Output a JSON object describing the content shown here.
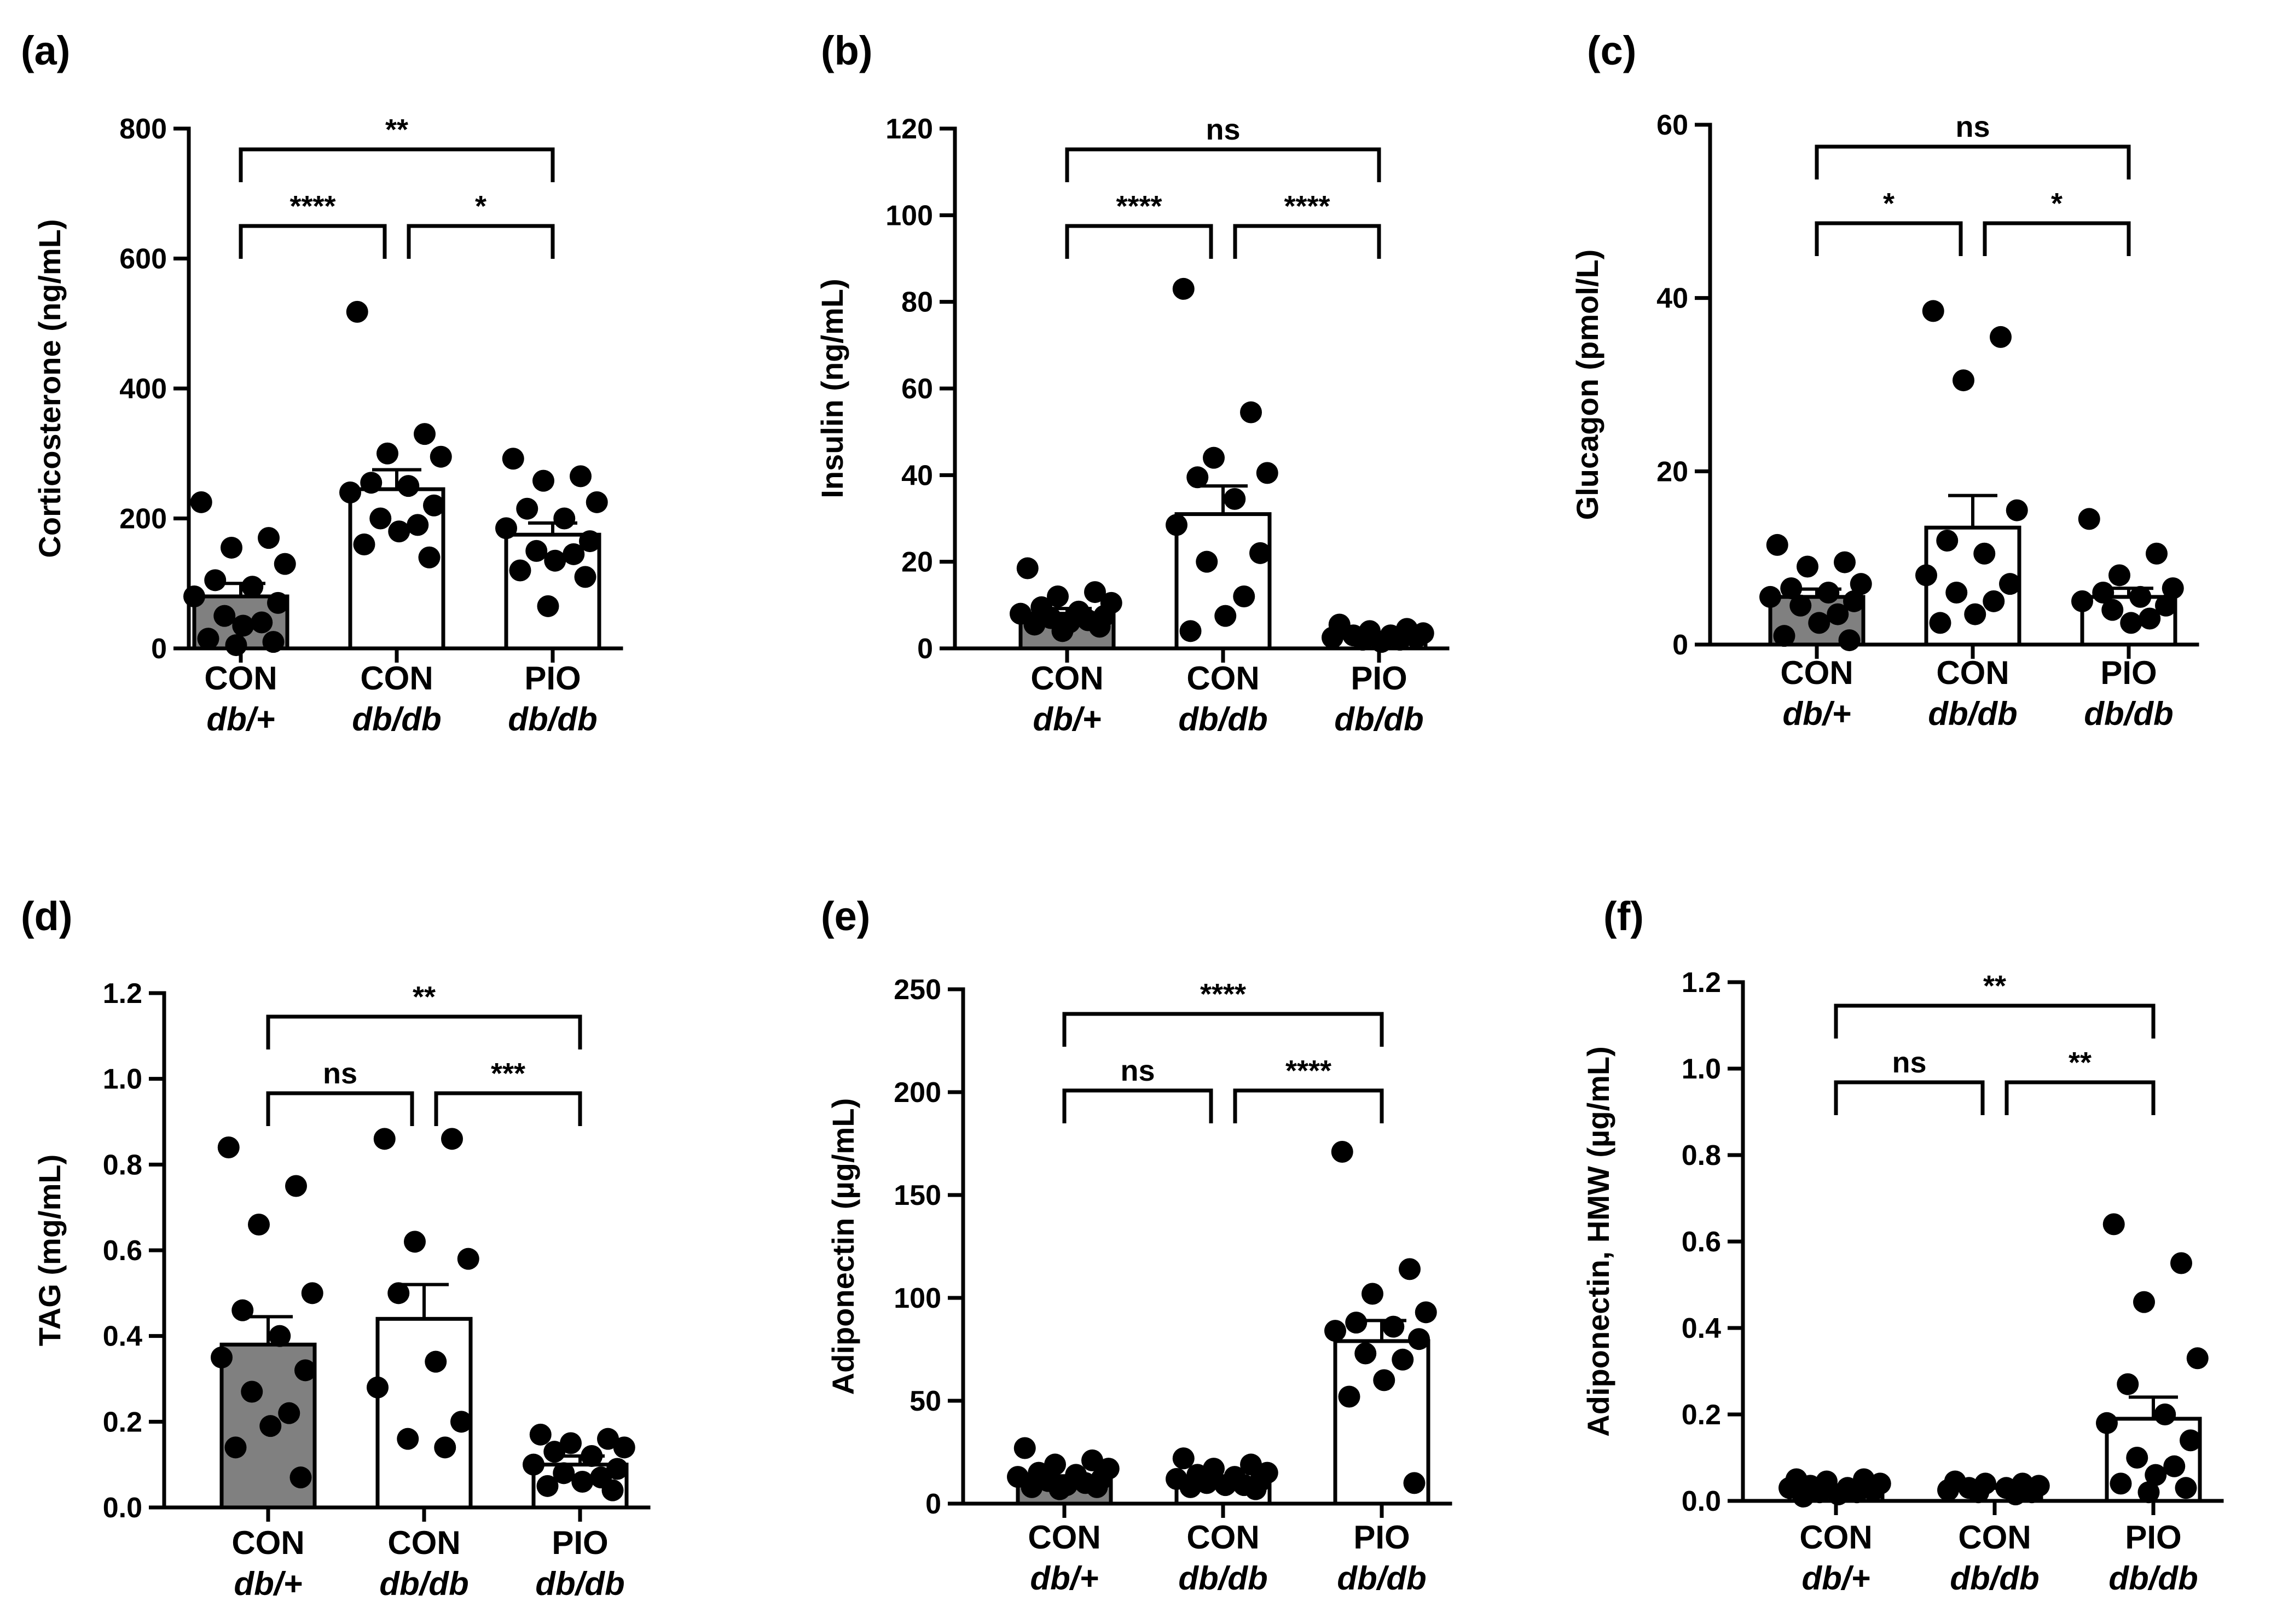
{
  "chart_data": [
    {
      "type": "bar",
      "panel_label": "(a)",
      "ylabel": "Corticosterone (ng/mL)",
      "ylim": [
        0,
        800
      ],
      "yticks": [
        0,
        200,
        400,
        600,
        800
      ],
      "categories": [
        {
          "line1": "CON",
          "line2": "db/+",
          "mean": 80,
          "sem": 20,
          "fill": "#808080",
          "points": [
            225,
            170,
            155,
            130,
            105,
            95,
            80,
            70,
            50,
            40,
            35,
            15,
            10,
            5
          ]
        },
        {
          "line1": "CON",
          "line2": "db/db",
          "mean": 245,
          "sem": 30,
          "fill": "#ffffff",
          "points": [
            518,
            330,
            300,
            295,
            255,
            250,
            240,
            220,
            200,
            190,
            180,
            160,
            140
          ]
        },
        {
          "line1": "PIO",
          "line2": "db/db",
          "mean": 175,
          "sem": 18,
          "fill": "#ffffff",
          "points": [
            292,
            265,
            258,
            225,
            215,
            200,
            185,
            165,
            150,
            145,
            135,
            120,
            110,
            65
          ]
        }
      ],
      "comparisons": [
        {
          "from": 0,
          "to": 2,
          "label": "**"
        },
        {
          "from": 0,
          "to": 1,
          "label": "****"
        },
        {
          "from": 1,
          "to": 2,
          "label": "*"
        }
      ]
    },
    {
      "type": "bar",
      "panel_label": "(b)",
      "ylabel": "Insulin (ng/mL)",
      "ylim": [
        0,
        120
      ],
      "yticks": [
        0,
        20,
        40,
        60,
        80,
        100,
        120
      ],
      "categories": [
        {
          "line1": "CON",
          "line2": "db/+",
          "mean": 8,
          "sem": 1.2,
          "fill": "#808080",
          "points": [
            18.5,
            13,
            12,
            10.5,
            9.5,
            8.5,
            8,
            7.5,
            7,
            6.5,
            6,
            5.5,
            5,
            4
          ]
        },
        {
          "line1": "CON",
          "line2": "db/db",
          "mean": 31,
          "sem": 6.5,
          "fill": "#ffffff",
          "points": [
            83,
            54.5,
            44,
            40.5,
            39.5,
            34.5,
            28.5,
            22,
            20,
            12,
            7.5,
            4
          ]
        },
        {
          "line1": "PIO",
          "line2": "db/db",
          "mean": 3,
          "sem": 0.4,
          "fill": "#ffffff",
          "points": [
            5.5,
            4.5,
            4,
            3.5,
            3,
            3,
            2.5,
            2.5,
            2,
            2,
            1.5
          ]
        }
      ],
      "comparisons": [
        {
          "from": 0,
          "to": 2,
          "label": "ns"
        },
        {
          "from": 0,
          "to": 1,
          "label": "****"
        },
        {
          "from": 1,
          "to": 2,
          "label": "****"
        }
      ]
    },
    {
      "type": "bar",
      "panel_label": "(c)",
      "ylabel": "Glucagon (pmol/L)",
      "ylim": [
        0,
        60
      ],
      "yticks": [
        0,
        20,
        40,
        60
      ],
      "categories": [
        {
          "line1": "CON",
          "line2": "db/+",
          "mean": 5.5,
          "sem": 0.9,
          "fill": "#808080",
          "points": [
            11.5,
            9.5,
            9,
            7,
            6.5,
            6,
            5.5,
            5,
            4.5,
            3.5,
            2.5,
            1,
            0.5
          ]
        },
        {
          "line1": "CON",
          "line2": "db/db",
          "mean": 13.5,
          "sem": 3.7,
          "fill": "#ffffff",
          "points": [
            38.5,
            35.5,
            30.5,
            15.5,
            12,
            10.5,
            8,
            7,
            6,
            5,
            3.5,
            2.5
          ]
        },
        {
          "line1": "PIO",
          "line2": "db/db",
          "mean": 5.5,
          "sem": 1.0,
          "fill": "#ffffff",
          "points": [
            14.5,
            10.5,
            8,
            6.5,
            6,
            5.5,
            5,
            4.5,
            4,
            3,
            2.5
          ]
        }
      ],
      "comparisons": [
        {
          "from": 0,
          "to": 2,
          "label": "ns"
        },
        {
          "from": 0,
          "to": 1,
          "label": "*"
        },
        {
          "from": 1,
          "to": 2,
          "label": "*"
        }
      ]
    },
    {
      "type": "bar",
      "panel_label": "(d)",
      "ylabel": "TAG  (mg/mL)",
      "ylim": [
        0,
        1.2
      ],
      "yticks": [
        0.0,
        0.2,
        0.4,
        0.6,
        0.8,
        1.0,
        1.2
      ],
      "tick_decimals": 1,
      "categories": [
        {
          "line1": "CON",
          "line2": "db/+",
          "mean": 0.38,
          "sem": 0.065,
          "fill": "#808080",
          "points": [
            0.84,
            0.75,
            0.66,
            0.5,
            0.46,
            0.4,
            0.35,
            0.32,
            0.27,
            0.22,
            0.19,
            0.14,
            0.07
          ]
        },
        {
          "line1": "CON",
          "line2": "db/db",
          "mean": 0.44,
          "sem": 0.08,
          "fill": "#ffffff",
          "points": [
            0.86,
            0.86,
            0.62,
            0.58,
            0.5,
            0.34,
            0.28,
            0.2,
            0.16,
            0.14
          ]
        },
        {
          "line1": "PIO",
          "line2": "db/db",
          "mean": 0.1,
          "sem": 0.02,
          "fill": "#ffffff",
          "points": [
            0.17,
            0.16,
            0.15,
            0.14,
            0.13,
            0.12,
            0.1,
            0.09,
            0.08,
            0.07,
            0.06,
            0.05,
            0.04
          ]
        }
      ],
      "comparisons": [
        {
          "from": 0,
          "to": 2,
          "label": "**"
        },
        {
          "from": 0,
          "to": 1,
          "label": "ns"
        },
        {
          "from": 1,
          "to": 2,
          "label": "***"
        }
      ]
    },
    {
      "type": "bar",
      "panel_label": "(e)",
      "ylabel": "Adiponectin (µg/mL)",
      "ylim": [
        0,
        250
      ],
      "yticks": [
        0,
        50,
        100,
        150,
        200,
        250
      ],
      "categories": [
        {
          "line1": "CON",
          "line2": "db/+",
          "mean": 12,
          "sem": 1.5,
          "fill": "#808080",
          "points": [
            27,
            21,
            19,
            17,
            15,
            14,
            13,
            12,
            11,
            10,
            9,
            8,
            8,
            7
          ]
        },
        {
          "line1": "CON",
          "line2": "db/db",
          "mean": 11,
          "sem": 1.2,
          "fill": "#ffffff",
          "points": [
            22,
            19,
            17,
            15,
            14,
            13,
            12,
            11,
            10,
            9,
            9,
            8,
            7
          ]
        },
        {
          "line1": "PIO",
          "line2": "db/db",
          "mean": 79,
          "sem": 10,
          "fill": "#ffffff",
          "points": [
            171,
            114,
            102,
            93,
            88,
            86,
            84,
            80,
            73,
            70,
            60,
            52,
            10
          ]
        }
      ],
      "comparisons": [
        {
          "from": 0,
          "to": 2,
          "label": "****"
        },
        {
          "from": 0,
          "to": 1,
          "label": "ns"
        },
        {
          "from": 1,
          "to": 2,
          "label": "****"
        }
      ]
    },
    {
      "type": "bar",
      "panel_label": "(f)",
      "ylabel": "Adiponectin, HMW (µg/mL)",
      "ylim": [
        0,
        1.2
      ],
      "yticks": [
        0.0,
        0.2,
        0.4,
        0.6,
        0.8,
        1.0,
        1.2
      ],
      "tick_decimals": 1,
      "categories": [
        {
          "line1": "CON",
          "line2": "db/+",
          "mean": 0.03,
          "sem": 0.004,
          "fill": "#808080",
          "points": [
            0.05,
            0.05,
            0.045,
            0.04,
            0.035,
            0.03,
            0.03,
            0.025,
            0.02,
            0.02,
            0.015,
            0.01
          ]
        },
        {
          "line1": "CON",
          "line2": "db/db",
          "mean": 0.03,
          "sem": 0.004,
          "fill": "#ffffff",
          "points": [
            0.045,
            0.04,
            0.04,
            0.035,
            0.03,
            0.03,
            0.025,
            0.02,
            0.02,
            0.015
          ]
        },
        {
          "line1": "PIO",
          "line2": "db/db",
          "mean": 0.19,
          "sem": 0.05,
          "fill": "#ffffff",
          "points": [
            0.64,
            0.55,
            0.46,
            0.33,
            0.27,
            0.2,
            0.18,
            0.14,
            0.1,
            0.08,
            0.06,
            0.04,
            0.03,
            0.02
          ]
        }
      ],
      "comparisons": [
        {
          "from": 0,
          "to": 2,
          "label": "**"
        },
        {
          "from": 0,
          "to": 1,
          "label": "ns"
        },
        {
          "from": 1,
          "to": 2,
          "label": "**"
        }
      ]
    }
  ]
}
